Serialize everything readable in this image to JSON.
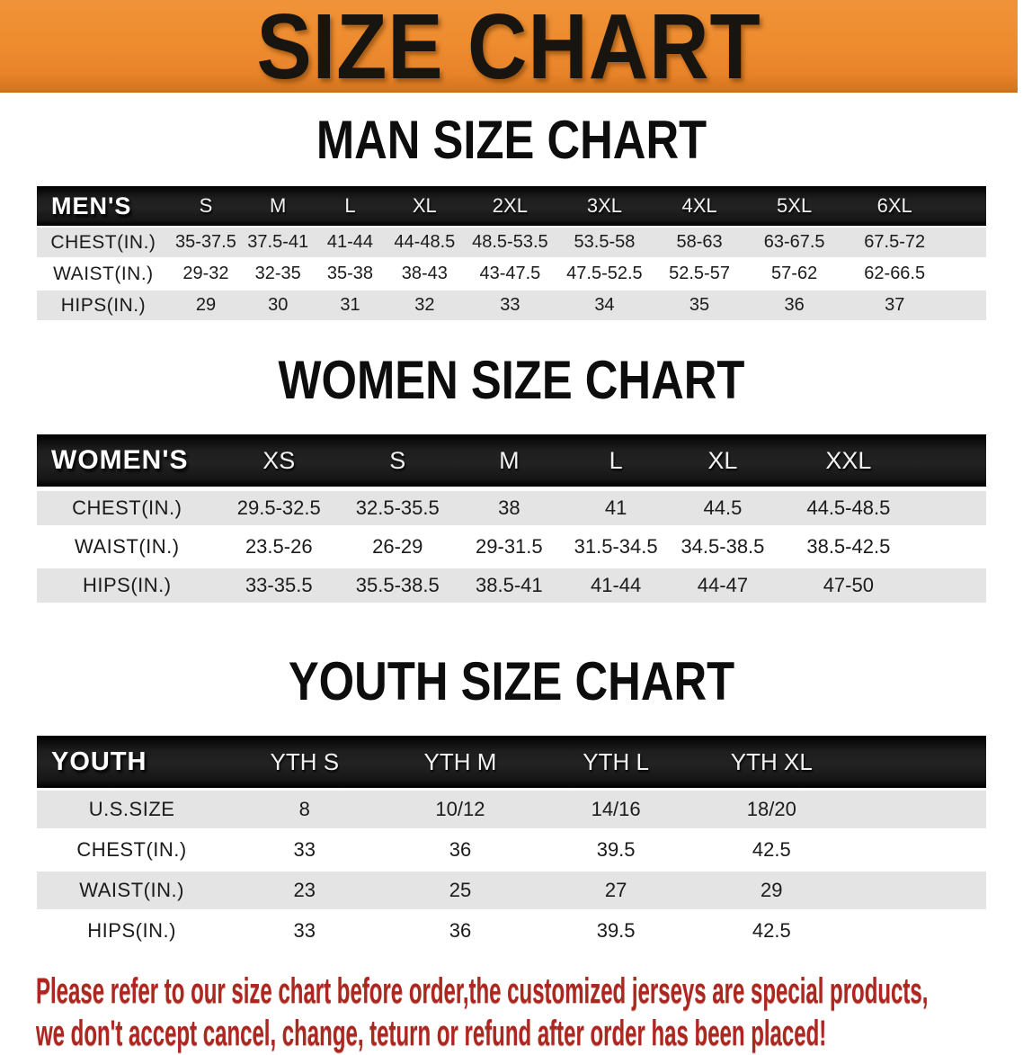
{
  "banner": {
    "title": "SIZE CHART",
    "bg_color": "#EE8C2F",
    "text_color": "#181410"
  },
  "chart_data": [
    {
      "type": "table",
      "title": "MAN SIZE CHART",
      "header_label": "MEN'S",
      "columns": [
        "S",
        "M",
        "L",
        "XL",
        "2XL",
        "3XL",
        "4XL",
        "5XL",
        "6XL"
      ],
      "rows": [
        {
          "label": "CHEST(IN.)",
          "values": [
            "35-37.5",
            "37.5-41",
            "41-44",
            "44-48.5",
            "48.5-53.5",
            "53.5-58",
            "58-63",
            "63-67.5",
            "67.5-72"
          ]
        },
        {
          "label": "WAIST(IN.)",
          "values": [
            "29-32",
            "32-35",
            "35-38",
            "38-43",
            "43-47.5",
            "47.5-52.5",
            "52.5-57",
            "57-62",
            "62-66.5"
          ]
        },
        {
          "label": "HIPS(IN.)",
          "values": [
            "29",
            "30",
            "31",
            "32",
            "33",
            "34",
            "35",
            "36",
            "37"
          ]
        }
      ]
    },
    {
      "type": "table",
      "title": "WOMEN SIZE CHART",
      "header_label": "WOMEN'S",
      "columns": [
        "XS",
        "S",
        "M",
        "L",
        "XL",
        "XXL"
      ],
      "rows": [
        {
          "label": "CHEST(IN.)",
          "values": [
            "29.5-32.5",
            "32.5-35.5",
            "38",
            "41",
            "44.5",
            "44.5-48.5"
          ]
        },
        {
          "label": "WAIST(IN.)",
          "values": [
            "23.5-26",
            "26-29",
            "29-31.5",
            "31.5-34.5",
            "34.5-38.5",
            "38.5-42.5"
          ]
        },
        {
          "label": "HIPS(IN.)",
          "values": [
            "33-35.5",
            "35.5-38.5",
            "38.5-41",
            "41-44",
            "44-47",
            "47-50"
          ]
        }
      ]
    },
    {
      "type": "table",
      "title": "YOUTH SIZE CHART",
      "header_label": "YOUTH",
      "columns": [
        "YTH S",
        "YTH M",
        "YTH L",
        "YTH XL"
      ],
      "rows": [
        {
          "label": "U.S.SIZE",
          "values": [
            "8",
            "10/12",
            "14/16",
            "18/20"
          ]
        },
        {
          "label": "CHEST(IN.)",
          "values": [
            "33",
            "36",
            "39.5",
            "42.5"
          ]
        },
        {
          "label": "WAIST(IN.)",
          "values": [
            "23",
            "25",
            "27",
            "29"
          ]
        },
        {
          "label": "HIPS(IN.)",
          "values": [
            "33",
            "36",
            "39.5",
            "42.5"
          ]
        }
      ]
    }
  ],
  "footer_note": {
    "lines": [
      "Please refer to our size chart before order,the customized jerseys are special products,",
      "we don't accept cancel, change, teturn or refund after order has been placed!"
    ],
    "color": "#AC271F"
  }
}
